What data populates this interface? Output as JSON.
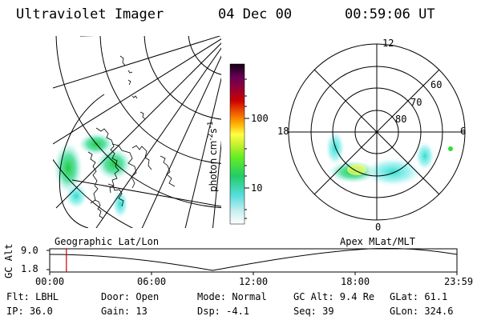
{
  "header": {
    "instrument": "Ultraviolet Imager",
    "date": "04 Dec 00",
    "time": "00:59:06 UT"
  },
  "colorbar": {
    "unit_label": "photon cm",
    "unit_exp1": "-2",
    "unit_s": "s",
    "unit_exp2": "-1",
    "tick_100": "100",
    "tick_10": "10"
  },
  "polar_plot": {
    "label_12": "12",
    "label_18": "18",
    "label_6": "6",
    "label_0": "0",
    "lat_60": "60",
    "lat_70": "70",
    "lat_80": "80"
  },
  "timeline": {
    "left_label": "Geographic Lat/Lon",
    "right_label": "Apex MLat/MLT",
    "axis_label": "GC Alt",
    "y_top": "9.0",
    "y_bottom": "1.8",
    "ticks": [
      "00:00",
      "06:00",
      "12:00",
      "18:00",
      "23:59"
    ],
    "marker_fraction": 0.041
  },
  "footer": {
    "flt": "Flt: LBHL",
    "ip": "IP: 36.0",
    "door": "Door: Open",
    "gain": "Gain: 13",
    "mode": "Mode: Normal",
    "dsp": "Dsp:   -4.1",
    "gcalt": "GC Alt: 9.4 Re",
    "seq": "Seq: 39",
    "glat": "GLat:  61.1",
    "glon": "GLon: 324.6"
  },
  "colors": {
    "marker": "#cc0000",
    "aurora_green": "#22dd44",
    "aurora_cyan": "#33ddcc"
  }
}
